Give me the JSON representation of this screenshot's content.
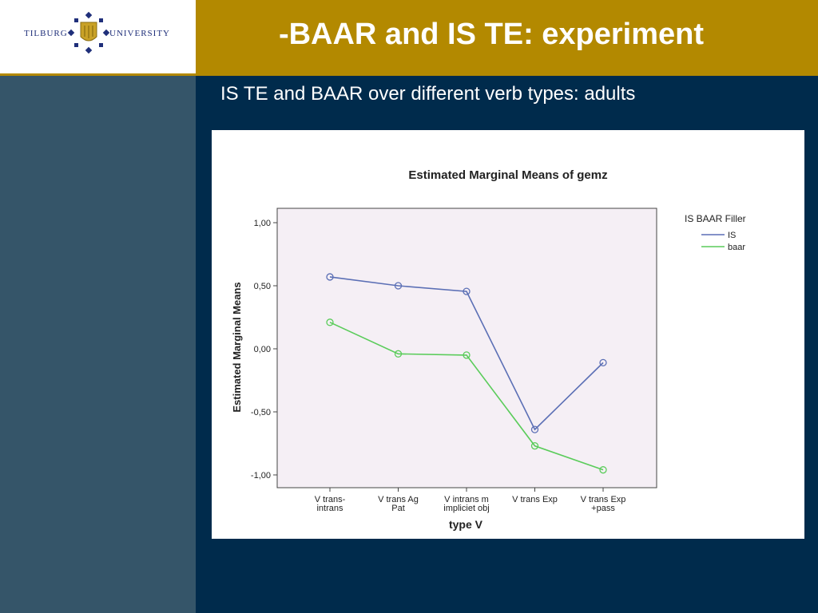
{
  "header": {
    "title": "-BAAR and IS TE: experiment"
  },
  "logo": {
    "left_text": "TILBURG",
    "right_text": "UNIVERSITY"
  },
  "subtitle": "IS TE and BAAR over different verb types: adults",
  "colors": {
    "header_gold": "#b38900",
    "background_navy": "#002b4c",
    "sidebar_slate": "#355569",
    "plot_bg": "#f5eff5",
    "series_is": "#5b6fb5",
    "series_baar": "#5acc5a"
  },
  "chart_data": {
    "type": "line",
    "title": "Estimated Marginal Means of gemz",
    "xlabel": "type V",
    "ylabel": "Estimated Marginal Means",
    "categories": [
      [
        "V trans-",
        "intrans"
      ],
      [
        "V trans Ag",
        "Pat"
      ],
      [
        "V intrans m",
        "impliciet obj"
      ],
      [
        "V trans Exp"
      ],
      [
        "V trans Exp",
        "+pass"
      ]
    ],
    "yticks": [
      "1,00",
      "0,50",
      "0,00",
      "-0,50",
      "-1,00"
    ],
    "ytick_values": [
      1.0,
      0.5,
      0.0,
      -0.5,
      -1.0
    ],
    "ylim": [
      -1.1,
      1.1
    ],
    "legend_title": "IS BAAR Filler",
    "legend_position": "right",
    "series": [
      {
        "name": "IS",
        "values": [
          0.57,
          0.5,
          0.455,
          -0.64,
          -0.11
        ]
      },
      {
        "name": "baar",
        "values": [
          0.21,
          -0.04,
          -0.05,
          -0.77,
          -0.96
        ]
      }
    ]
  }
}
